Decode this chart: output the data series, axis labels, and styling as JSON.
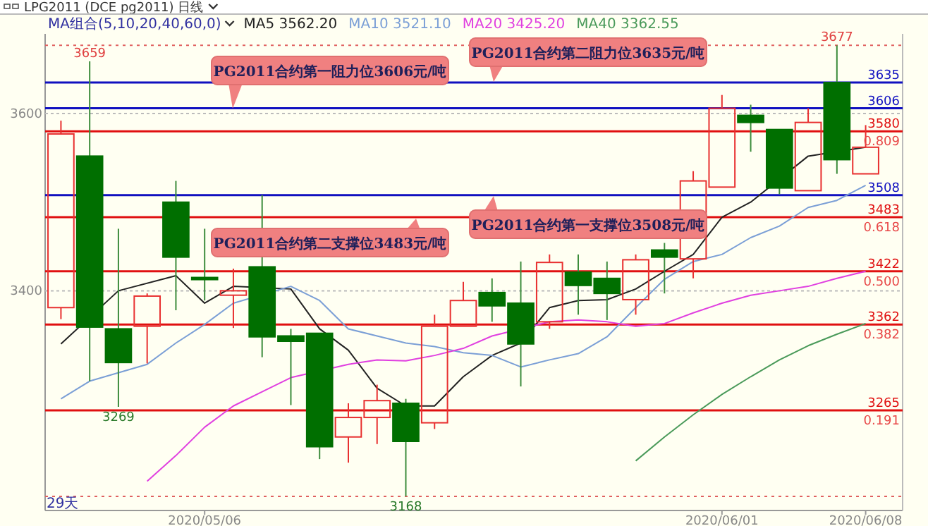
{
  "chart_data": {
    "type": "candlestick",
    "title": "LPG2011 (DCE pg2011) 日线",
    "legend_title": "MA组合(5,10,20,40,60,0)",
    "legend": "top",
    "categories": [
      null,
      null,
      null,
      null,
      null,
      "2020/05/06",
      null,
      null,
      null,
      null,
      null,
      null,
      null,
      null,
      null,
      null,
      null,
      null,
      null,
      null,
      null,
      null,
      null,
      "2020/06/01",
      null,
      null,
      null,
      null,
      "2020/06/08"
    ],
    "ylim": [
      3152,
      3690
    ],
    "yticks": [
      3400,
      3600
    ],
    "grid": "y",
    "series": [
      {
        "ohlc": [
          [
            3381,
            3592,
            3368,
            3577
          ],
          [
            3552,
            3659,
            3298,
            3359
          ],
          [
            3357,
            3470,
            3269,
            3319
          ],
          [
            3360,
            3397,
            3318,
            3394
          ],
          [
            3500,
            3524,
            3378,
            3438
          ],
          [
            3415,
            3470,
            3389,
            3413
          ],
          [
            3395,
            3425,
            3358,
            3400
          ],
          [
            3427,
            3508,
            3325,
            3348
          ],
          [
            3349,
            3357,
            3271,
            3343
          ],
          [
            3352,
            3352,
            3210,
            3224
          ],
          [
            3235,
            3273,
            3206,
            3257
          ],
          [
            3257,
            3294,
            3227,
            3276
          ],
          [
            3273,
            3278,
            3168,
            3230
          ],
          [
            3251,
            3373,
            3244,
            3360
          ],
          [
            3360,
            3410,
            3360,
            3389
          ],
          [
            3398,
            3414,
            3365,
            3383
          ],
          [
            3386,
            3433,
            3292,
            3340
          ],
          [
            3365,
            3441,
            3357,
            3432
          ],
          [
            3421,
            3441,
            3373,
            3406
          ],
          [
            3414,
            3433,
            3367,
            3397
          ],
          [
            3390,
            3441,
            3373,
            3435
          ],
          [
            3446,
            3454,
            3397,
            3438
          ],
          [
            3436,
            3535,
            3414,
            3524
          ],
          [
            3517,
            3621,
            3517,
            3606
          ],
          [
            3598,
            3610,
            3557,
            3590
          ],
          [
            3582,
            3582,
            3509,
            3516
          ],
          [
            3513,
            3606,
            3513,
            3590
          ],
          [
            3635,
            3677,
            3532,
            3548
          ],
          [
            3532,
            3587,
            3532,
            3562
          ]
        ]
      },
      {
        "type": "line",
        "name": "MA5 3562.20",
        "color": "#222222",
        "values": [
          3340,
          null,
          3400,
          null,
          3417,
          3386,
          3405,
          null,
          3402,
          3357,
          3333,
          3290,
          3270,
          3270,
          3303,
          3327,
          3341,
          3381,
          3389,
          3390,
          3402,
          3422,
          3441,
          3483,
          3500,
          null,
          3552,
          null,
          3562
        ]
      },
      {
        "type": "line",
        "name": "MA10 3521.10",
        "color": "#7b9fd6",
        "values": [
          3278,
          3298,
          null,
          3317,
          3341,
          3362,
          3386,
          null,
          3405,
          3389,
          3357,
          3349,
          3341,
          3337,
          3330,
          3327,
          3314,
          3322,
          3329,
          3348,
          3381,
          3413,
          3433,
          3441,
          3460,
          3473,
          3494,
          3502,
          3519
        ]
      },
      {
        "type": "line",
        "name": "MA20 3425.20",
        "color": "#e040e0",
        "values": [
          null,
          null,
          null,
          3185,
          3214,
          3246,
          3270,
          3286,
          3302,
          null,
          3317,
          3322,
          3321,
          3327,
          3335,
          3349,
          null,
          3365,
          3367,
          3365,
          3360,
          3363,
          3375,
          3386,
          3395,
          3400,
          3405,
          3414,
          3422
        ]
      },
      {
        "type": "line",
        "name": "MA40 3362.55",
        "color": "#4a9a5a",
        "values": [
          null,
          null,
          null,
          null,
          null,
          null,
          null,
          null,
          null,
          null,
          null,
          null,
          null,
          null,
          null,
          null,
          null,
          null,
          null,
          null,
          3208,
          3235,
          3260,
          3283,
          3303,
          3322,
          3338,
          3351,
          3363
        ]
      }
    ],
    "ref_lines": [
      {
        "axis": "y",
        "value": 3677,
        "color": "#e06060",
        "line_style": "dotted"
      },
      {
        "axis": "y",
        "value": 3635,
        "color": "#1010c0",
        "label": "3635"
      },
      {
        "axis": "y",
        "value": 3606,
        "color": "#1010c0",
        "label": "3606"
      },
      {
        "axis": "y",
        "value": 3580,
        "color": "#e01010",
        "label": "3580"
      },
      {
        "axis": "y",
        "value": 3508,
        "color": "#1010c0",
        "label": "3508"
      },
      {
        "axis": "y",
        "value": 3483,
        "color": "#e01010",
        "label": "3483"
      },
      {
        "axis": "y",
        "value": 3422,
        "color": "#e01010",
        "label": "3422"
      },
      {
        "axis": "y",
        "value": 3362,
        "color": "#e01010",
        "label": "3362"
      },
      {
        "axis": "y",
        "value": 3265,
        "color": "#e01010",
        "label": "3265"
      },
      {
        "axis": "y",
        "value": 3168,
        "color": "#e06060",
        "line_style": "dotted"
      }
    ],
    "annotations": [
      "PG2011合约第一阻力位3606元/吨",
      "PG2011合约第二阻力位3635元/吨",
      "PG2011合约第二支撑位3483元/吨",
      "PG2011合约第一支撑位3508元/吨",
      "29天",
      {
        "text": "3659",
        "y": 3659
      },
      {
        "text": "3677",
        "y": 3677
      },
      {
        "text": "3269",
        "y": 3269
      },
      {
        "text": "3168",
        "y": 3168
      },
      {
        "text": "0.809",
        "y": 3580
      },
      {
        "text": "0.618",
        "y": 3483
      },
      {
        "text": "0.500",
        "y": 3422
      },
      {
        "text": "0.382",
        "y": 3362
      },
      {
        "text": "0.191",
        "y": 3265
      }
    ]
  }
}
